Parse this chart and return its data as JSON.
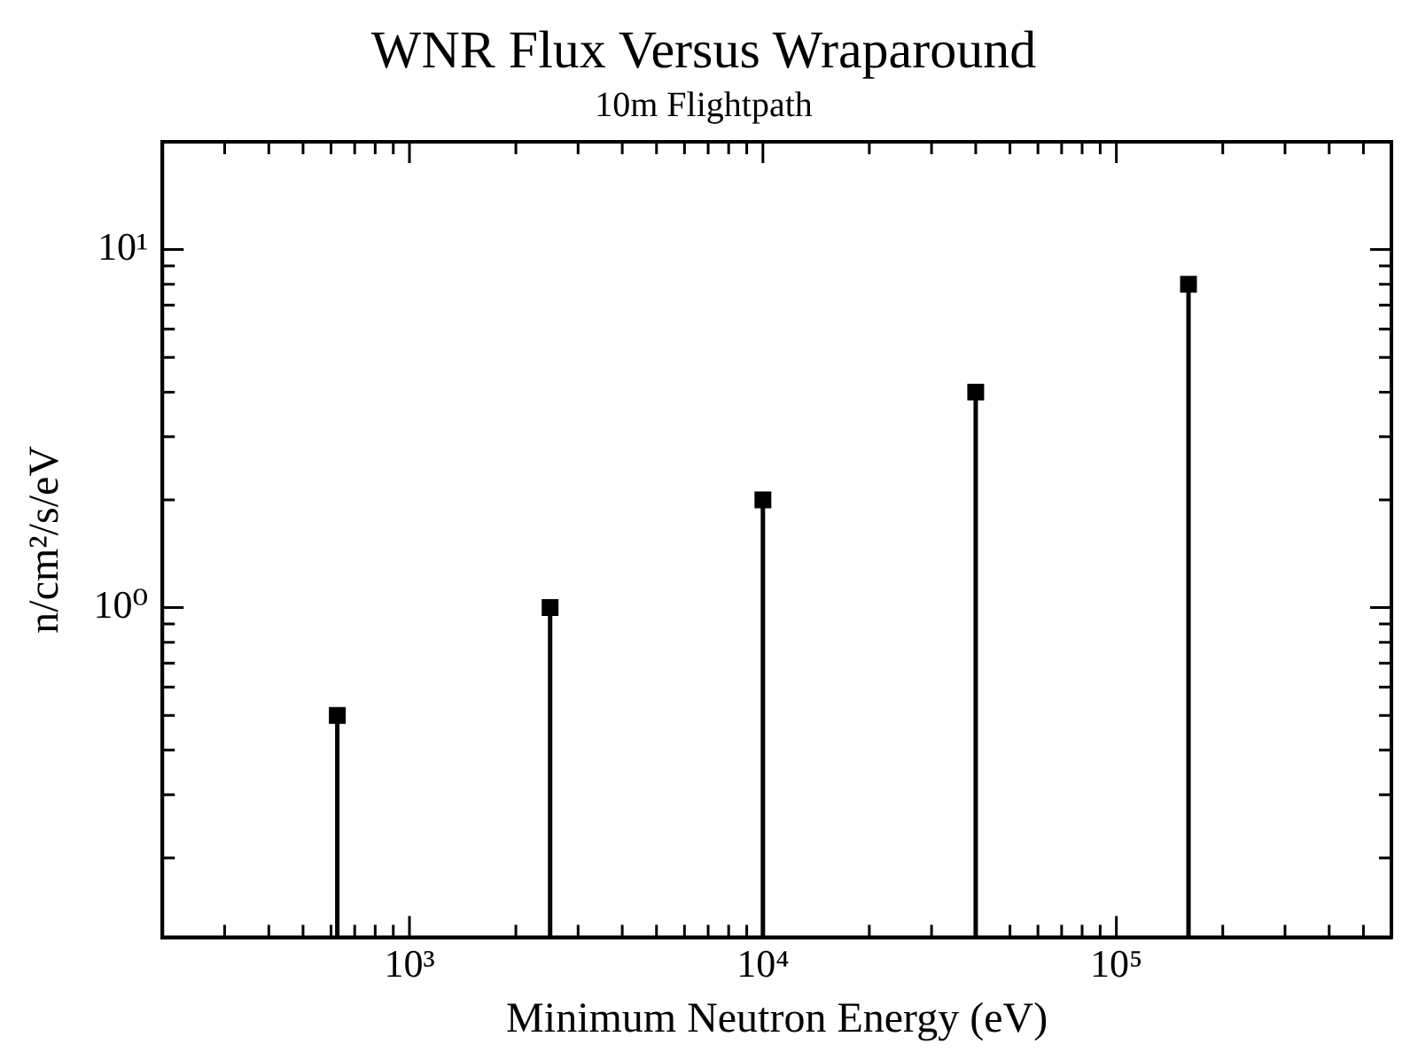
{
  "chart_data": {
    "type": "lollipop",
    "title": "WNR Flux Versus Wraparound",
    "subtitle": "10m Flightpath",
    "xlabel": "Minimum Neutron Energy (eV)",
    "ylabel": "n/cm²/s/eV",
    "x": [
      625,
      2500,
      10000,
      40000,
      160000
    ],
    "series": [
      {
        "color": "#000000",
        "values": [
          0.5,
          1,
          2,
          4,
          8
        ]
      }
    ],
    "log": "xy",
    "marker": "square",
    "grid": false,
    "xlim": [
      200,
      600000
    ],
    "ylim": [
      0.12,
      20
    ],
    "xticks": [
      {
        "value": 300,
        "label": null
      },
      {
        "value": 400,
        "label": null
      },
      {
        "value": 500,
        "label": null
      },
      {
        "value": 600,
        "label": null
      },
      {
        "value": 700,
        "label": null
      },
      {
        "value": 800,
        "label": null
      },
      {
        "value": 900,
        "label": null
      },
      {
        "value": 1000,
        "label": "10³"
      },
      {
        "value": 2000,
        "label": null
      },
      {
        "value": 3000,
        "label": null
      },
      {
        "value": 4000,
        "label": null
      },
      {
        "value": 5000,
        "label": null
      },
      {
        "value": 6000,
        "label": null
      },
      {
        "value": 7000,
        "label": null
      },
      {
        "value": 8000,
        "label": null
      },
      {
        "value": 9000,
        "label": null
      },
      {
        "value": 10000,
        "label": "10⁴"
      },
      {
        "value": 20000,
        "label": null
      },
      {
        "value": 30000,
        "label": null
      },
      {
        "value": 40000,
        "label": null
      },
      {
        "value": 50000,
        "label": null
      },
      {
        "value": 60000,
        "label": null
      },
      {
        "value": 70000,
        "label": null
      },
      {
        "value": 80000,
        "label": null
      },
      {
        "value": 90000,
        "label": null
      },
      {
        "value": 100000,
        "label": "10⁵"
      },
      {
        "value": 200000,
        "label": null
      },
      {
        "value": 300000,
        "label": null
      },
      {
        "value": 400000,
        "label": null
      },
      {
        "value": 500000,
        "label": null
      }
    ],
    "yticks": [
      {
        "value": 0.2,
        "label": null
      },
      {
        "value": 0.3,
        "label": null
      },
      {
        "value": 0.4,
        "label": null
      },
      {
        "value": 0.5,
        "label": null
      },
      {
        "value": 0.6,
        "label": null
      },
      {
        "value": 0.7,
        "label": null
      },
      {
        "value": 0.8,
        "label": null
      },
      {
        "value": 0.9,
        "label": null
      },
      {
        "value": 1,
        "label": "10⁰"
      },
      {
        "value": 2,
        "label": null
      },
      {
        "value": 3,
        "label": null
      },
      {
        "value": 4,
        "label": null
      },
      {
        "value": 5,
        "label": null
      },
      {
        "value": 6,
        "label": null
      },
      {
        "value": 7,
        "label": null
      },
      {
        "value": 8,
        "label": null
      },
      {
        "value": 9,
        "label": null
      },
      {
        "value": 10,
        "label": "10¹"
      }
    ]
  }
}
